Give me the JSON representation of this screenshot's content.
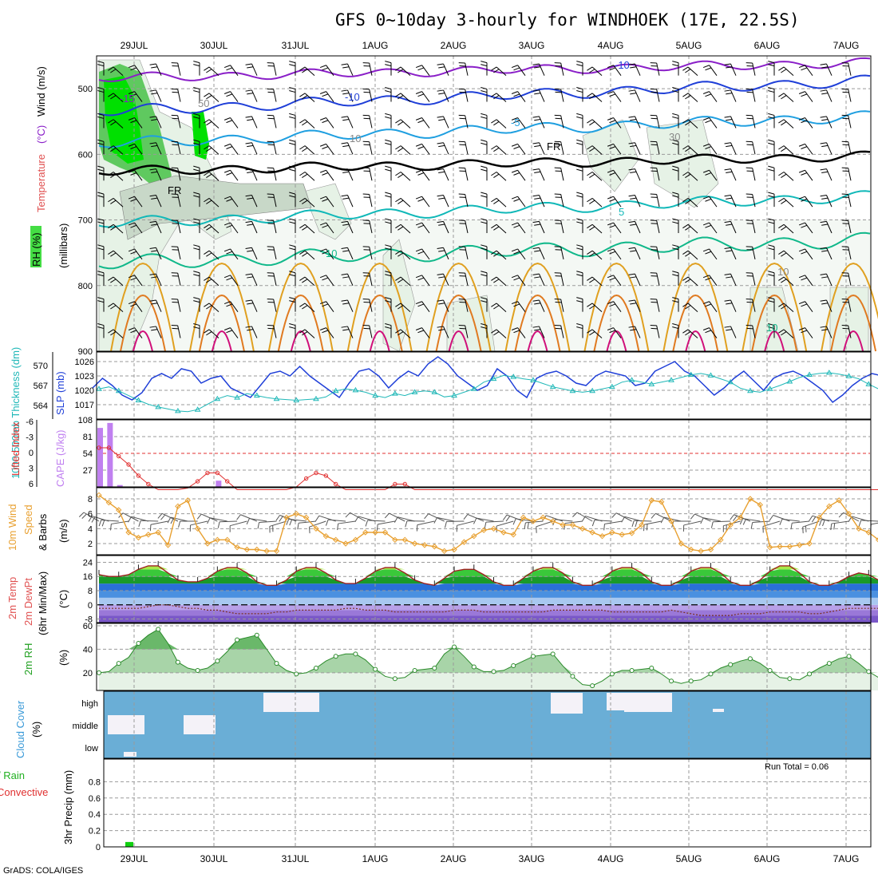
{
  "title": "GFS 0~10day 3-hourly for WINDHOEK (17E, 22.5S)",
  "credit": "GrADS: COLA/IGES",
  "dates": [
    "29JUL",
    "30JUL",
    "31JUL",
    "1AUG",
    "2AUG",
    "3AUG",
    "4AUG",
    "5AUG",
    "6AUG",
    "7AUG"
  ],
  "colors": {
    "rh_green": "#00e000",
    "rh_mid": "#5fc95f",
    "rh_light": "#e6f2e6",
    "temp_purple": "#8a1fc8",
    "temp_blue": "#1f3fd8",
    "temp_sky": "#1f9fe0",
    "temp_teal": "#10b8b8",
    "temp_green": "#10b88a",
    "temp_orange": "#e0a020",
    "temp_dark_orange": "#e07a20",
    "temp_magenta": "#d0107a",
    "slp": "#1f3fd8",
    "thickness": "#20b8b8",
    "cape": "#c080f0",
    "lifted": "#e03030",
    "wind": "#e8a030",
    "cloud": "#6aaed6",
    "precip": "#10d010"
  },
  "chart_data": [
    {
      "type": "line",
      "panel": "upper-air",
      "ylabel_parts": [
        "RH (%)",
        "Temperature",
        "(°C)",
        "Wind (m/s)"
      ],
      "ylabel_axis": "(millibars)",
      "yticks": [
        500,
        600,
        700,
        800,
        900
      ],
      "ylim": [
        900,
        450
      ],
      "contour_labels": [
        "-15",
        "-10",
        "-10",
        "-5",
        "FR",
        "FR",
        "5",
        "10",
        "10",
        "50",
        "10",
        "30",
        "10"
      ]
    },
    {
      "type": "line",
      "panel": "slp-thickness",
      "ylabel": "1000-500mb Thickness (dm)",
      "ylabel2": "SLP (mb)",
      "yticks_left": [
        564,
        567,
        570
      ],
      "yticks_right": [
        1017,
        1020,
        1023,
        1026
      ],
      "series": [
        {
          "name": "SLP",
          "values": [
            1020.5,
            1022.5,
            1021,
            1019,
            1018,
            1019.5,
            1022.5,
            1023.5,
            1022.5,
            1024.5,
            1024,
            1021.5,
            1022.5,
            1023,
            1020.5,
            1019.5,
            1018.5,
            1021,
            1023.5,
            1024,
            1023,
            1025,
            1023,
            1021.5,
            1020,
            1018.5,
            1021.5,
            1024,
            1024.5,
            1023,
            1020.5,
            1022.5,
            1024,
            1023,
            1025.5,
            1027,
            1025.5,
            1023,
            1021.5,
            1020,
            1021,
            1024.5,
            1023,
            1020,
            1018.5,
            1022.5,
            1023.5,
            1024,
            1023,
            1021.5,
            1021,
            1023,
            1024,
            1023.5,
            1023,
            1021,
            1021.5,
            1024,
            1025,
            1026,
            1024,
            1023,
            1021,
            1019,
            1020.5,
            1022.5,
            1024,
            1022,
            1020,
            1022.5,
            1023.5,
            1024,
            1023,
            1021.5,
            1020,
            1017.5,
            1019,
            1021,
            1022.5,
            1023.5,
            1023,
            1021,
            1019,
            1020.5,
            1022.5,
            1022,
            1021,
            1023.5,
            1021.5,
            1019.5,
            1020.5,
            1022.5,
            1021,
            1023,
            1023.5,
            1024.5,
            1025.5,
            1024,
            1023.5,
            1024.5
          ]
        },
        {
          "name": "Thickness",
          "values": [
            566.5,
            566.8,
            566.2,
            565.5,
            564.8,
            564.2,
            563.8,
            563.5,
            563.2,
            563.1,
            563.4,
            564.2,
            565,
            565.5,
            565.2,
            565.8,
            565.5,
            565.2,
            565,
            564.9,
            564.8,
            564.9,
            565,
            565.3,
            566.2,
            566.5,
            566.3,
            566,
            565.5,
            565.2,
            565.8,
            565.5,
            566,
            566.2,
            566,
            565.3,
            565.5,
            566,
            566.5,
            567.5,
            568,
            568.5,
            568.3,
            568,
            567.8,
            567.3,
            566.8,
            566.5,
            566.2,
            566,
            566.2,
            566.5,
            566.8,
            567.5,
            567.8,
            567.5,
            567.2,
            567.5,
            567.8,
            568.2,
            568.6,
            568.8,
            568.5,
            568,
            567.5,
            566.6,
            566.2,
            566,
            566.5,
            567,
            567.6,
            568.2,
            568.6,
            568.8,
            568.9,
            568.7,
            568.4,
            568,
            567.2,
            566.5,
            566,
            565.5,
            565,
            564.5,
            564.2,
            564.5,
            564.8,
            565.2,
            565.6,
            566.1,
            566.6,
            567.2,
            567.6,
            568,
            568.3,
            567.9,
            567.5,
            567,
            566.8,
            566.5
          ]
        }
      ]
    },
    {
      "type": "bar",
      "panel": "cape-lifted-index",
      "ylabel": "Lifted Index",
      "ylabel2": "CAPE (J/kg)",
      "yticks_left": [
        "-6",
        "-3",
        "0",
        "3",
        "6"
      ],
      "yticks_right": [
        27,
        54,
        81,
        108
      ],
      "series": [
        {
          "name": "CAPE",
          "values": [
            95,
            103,
            3,
            0,
            0,
            0,
            0,
            0,
            0,
            0,
            0,
            0,
            10,
            0,
            0,
            0,
            0,
            0,
            0,
            0,
            0,
            0,
            0,
            0,
            0,
            0,
            0,
            0,
            0,
            0,
            0,
            0,
            0,
            0,
            0,
            0,
            0,
            0,
            0,
            0,
            0,
            0,
            0,
            0,
            0,
            0,
            0,
            0,
            0,
            0,
            0,
            0,
            0,
            0,
            0,
            0,
            0,
            0,
            0,
            0,
            0,
            0,
            0,
            0,
            0,
            0,
            0,
            0,
            0,
            0,
            0,
            0,
            0,
            0,
            0,
            0,
            0,
            0,
            0,
            0,
            0,
            0,
            0,
            0,
            0,
            0,
            0,
            0,
            0,
            0,
            0,
            0,
            0,
            0,
            0,
            0,
            0,
            0,
            0,
            0
          ]
        },
        {
          "name": "Lifted Index",
          "values": [
            -1,
            -1,
            0.5,
            2,
            4,
            5.5,
            6.5,
            6.5,
            6.5,
            6.2,
            5,
            3.5,
            3.5,
            5,
            6.5,
            6.5,
            6.5,
            6.5,
            6.5,
            6.5,
            6,
            4.5,
            3.5,
            4,
            5.5,
            6.5,
            6.5,
            6.5,
            6.5,
            6.5,
            5.5,
            5.5,
            6.5,
            6.5,
            6.5,
            6.5,
            6.5,
            6.5,
            6.5,
            6.5,
            6.5,
            6.5,
            6.5,
            6.5,
            6.5,
            6.5,
            6.5,
            6.5,
            6.5,
            6.5,
            6.5,
            6.5,
            6.5,
            6.5,
            6.5,
            6.5,
            6.5,
            6.5,
            6.5,
            6.5,
            6.5,
            6.5,
            6.5,
            6.5,
            6.5,
            6.5,
            6.5,
            6.5,
            6.5,
            6.5,
            6.5,
            6.5,
            6.5,
            6.5,
            6.5,
            6.5,
            6.5,
            6.5,
            6.5,
            6.5,
            6.5,
            6.5,
            6.5,
            6.5,
            6.5,
            6.5,
            6.5,
            6.5,
            6.5,
            6.5,
            6.5,
            6.5,
            6.5,
            6.5,
            6.5,
            6.5,
            6.5,
            6.5,
            6.5,
            6.5
          ]
        }
      ]
    },
    {
      "type": "line",
      "panel": "10m-wind",
      "ylabel": "10m Wind",
      "ylabel2": "Speed",
      "ylabel3": "& Barbs",
      "yunit": "(m/s)",
      "yticks": [
        2,
        4,
        6,
        8
      ],
      "series": [
        {
          "name": "Speed",
          "values": [
            8.5,
            7.5,
            6.5,
            3.5,
            2.8,
            3.2,
            3.5,
            1.8,
            7,
            7.8,
            4,
            2,
            2.5,
            2.5,
            1.5,
            1.2,
            1.2,
            1,
            1,
            5.5,
            6,
            5.5,
            4,
            3,
            2.5,
            2,
            2.5,
            3.5,
            3.5,
            3.5,
            2.5,
            2.5,
            2,
            1.8,
            1.6,
            1,
            1.2,
            2.2,
            3,
            3.8,
            4,
            3.5,
            3.2,
            5.5,
            5,
            5.5,
            5,
            4.5,
            4.5,
            4,
            3.5,
            3,
            3.5,
            3.2,
            3.4,
            4.5,
            7.8,
            7.6,
            5,
            2,
            1.2,
            1,
            1.2,
            2.5,
            4.5,
            5.5,
            8,
            7.2,
            1.5,
            1.6,
            1.6,
            1.8,
            2,
            5.5,
            7,
            7.8,
            6,
            4,
            3.5,
            2.5,
            2.5,
            3.5,
            4,
            8.5,
            8,
            5,
            4,
            2.5,
            2.5,
            2.5,
            2.5,
            2,
            2.5,
            4.5,
            4,
            3.8,
            3.5,
            3,
            3,
            3.2
          ]
        }
      ]
    },
    {
      "type": "area",
      "panel": "2m-temp",
      "ylabel": "2m Temp",
      "ylabel2": "2m DewPt",
      "ylabel3": "(6hr Min/Max)",
      "yunit": "(°C)",
      "yticks": [
        -8,
        0,
        8,
        16,
        24
      ],
      "series": [
        {
          "name": "2m Temp",
          "values": [
            17,
            16,
            16,
            17,
            20,
            22,
            22,
            18,
            14,
            13,
            13,
            15,
            19,
            21,
            21,
            18,
            13,
            11,
            11,
            14,
            19,
            21,
            21,
            18,
            14,
            12,
            12,
            15,
            19,
            21,
            21,
            18,
            14,
            12,
            11,
            15,
            19,
            20,
            20,
            17,
            13,
            11,
            11,
            15,
            19,
            21,
            21,
            18,
            13,
            11,
            11,
            14,
            19,
            21,
            21,
            18,
            13,
            11,
            11,
            14,
            19,
            21,
            21,
            18,
            13,
            11,
            11,
            14,
            19,
            22,
            22,
            18,
            13,
            11,
            11,
            13,
            16,
            18,
            17,
            14,
            9,
            7,
            6,
            5,
            5,
            6,
            8,
            12,
            16,
            18,
            19,
            17,
            13,
            10,
            9,
            8,
            8,
            8,
            8,
            8
          ]
        },
        {
          "name": "2m DewPt",
          "values": [
            -2,
            -2,
            -2,
            -2,
            -2,
            -1,
            0,
            0,
            -1,
            -2,
            -2,
            -3,
            -3,
            -4,
            -5,
            -5,
            -5,
            -5,
            -4,
            -4,
            -3,
            -3,
            -3,
            -3,
            -3,
            -2,
            -2,
            -3,
            -3,
            -3,
            -4,
            -4,
            -4,
            -4,
            -4,
            -4,
            -3,
            -3,
            -3,
            -4,
            -4,
            -4,
            -4,
            -4,
            -4,
            -4,
            -3,
            -3,
            -3,
            -3,
            -3,
            -3,
            -4,
            -4,
            -4,
            -4,
            -4,
            -4,
            -3,
            -4,
            -5,
            -6,
            -6,
            -6,
            -6,
            -5,
            -5,
            -5,
            -4,
            -4,
            -4,
            -4,
            -5,
            -5,
            -4,
            -3,
            -2,
            -2,
            -2,
            -2,
            -3,
            -4,
            -5,
            -6,
            -6,
            -5,
            -4,
            -3,
            -3,
            -3,
            -3,
            -4,
            -4,
            -4,
            -4,
            -5,
            -5,
            -5,
            -5,
            -5
          ]
        }
      ]
    },
    {
      "type": "area",
      "panel": "2m-rh",
      "ylabel": "2m RH",
      "yunit": "(%)",
      "yticks": [
        20,
        40,
        60
      ],
      "series": [
        {
          "name": "2m RH",
          "values": [
            20,
            21,
            28,
            33,
            45,
            52,
            57,
            45,
            29,
            24,
            22,
            24,
            30,
            38,
            48,
            50,
            52,
            40,
            28,
            22,
            19,
            20,
            24,
            30,
            34,
            36,
            36,
            31,
            23,
            17,
            15,
            16,
            22,
            23,
            24,
            36,
            42,
            34,
            25,
            21,
            21,
            22,
            26,
            30,
            34,
            35,
            36,
            26,
            17,
            10,
            9,
            13,
            19,
            22,
            22,
            23,
            24,
            19,
            13,
            11,
            13,
            14,
            19,
            24,
            27,
            30,
            32,
            28,
            22,
            16,
            15,
            14,
            19,
            24,
            28,
            32,
            34,
            28,
            21,
            16,
            14,
            15,
            17,
            20,
            28,
            36,
            44,
            48,
            39,
            26,
            16,
            10,
            10,
            14,
            22,
            30,
            37,
            41,
            44,
            44
          ]
        }
      ]
    },
    {
      "type": "bar",
      "panel": "cloud-cover",
      "ylabel": "Cloud Cover",
      "yunit": "(%)",
      "levels": [
        "high",
        "middle",
        "low"
      ]
    },
    {
      "type": "bar",
      "panel": "precip",
      "ylabel_left": [
        "Total / Rain",
        "Convective"
      ],
      "ylabel": "3hr Precip (mm)",
      "yticks": [
        "0",
        "0.2",
        "0.4",
        "0.6",
        "0.8"
      ],
      "ylim": [
        0,
        1
      ],
      "annotation": "Run Total = 0.06",
      "series": [
        {
          "name": "Total / Rain",
          "values": [
            0,
            0,
            0.06,
            0,
            0,
            0,
            0,
            0,
            0,
            0,
            0,
            0,
            0,
            0,
            0,
            0,
            0,
            0,
            0,
            0,
            0,
            0,
            0,
            0,
            0,
            0,
            0,
            0,
            0,
            0,
            0,
            0,
            0,
            0,
            0,
            0,
            0,
            0,
            0,
            0,
            0,
            0,
            0,
            0,
            0,
            0,
            0,
            0,
            0,
            0,
            0,
            0,
            0,
            0,
            0,
            0,
            0,
            0,
            0,
            0,
            0,
            0,
            0,
            0,
            0,
            0,
            0,
            0,
            0,
            0,
            0,
            0,
            0,
            0,
            0,
            0,
            0,
            0,
            0,
            0,
            0,
            0,
            0,
            0,
            0,
            0,
            0,
            0,
            0,
            0,
            0,
            0,
            0,
            0,
            0,
            0,
            0,
            0,
            0,
            0
          ]
        }
      ]
    }
  ]
}
